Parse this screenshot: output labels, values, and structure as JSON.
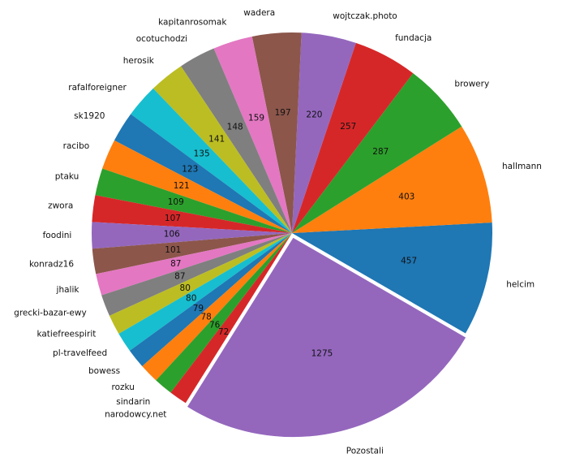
{
  "chart_data": {
    "type": "pie",
    "title": "",
    "start_angle_deg": -30,
    "direction": "counterclockwise",
    "exploded": [
      "Pozostali"
    ],
    "slices": [
      {
        "label": "helcim",
        "value": 457,
        "color": "#1f77b4"
      },
      {
        "label": "hallmann",
        "value": 403,
        "color": "#ff7f0e"
      },
      {
        "label": "browery",
        "value": 287,
        "color": "#2ca02c"
      },
      {
        "label": "fundacja",
        "value": 257,
        "color": "#d62728"
      },
      {
        "label": "wojtczak.photo",
        "value": 220,
        "color": "#9467bd"
      },
      {
        "label": "wadera",
        "value": 197,
        "color": "#8c564b"
      },
      {
        "label": "kapitanrosomak",
        "value": 159,
        "color": "#e377c2"
      },
      {
        "label": "ocotuchodzi",
        "value": 148,
        "color": "#7f7f7f"
      },
      {
        "label": "herosik",
        "value": 141,
        "color": "#bcbd22"
      },
      {
        "label": "rafalforeigner",
        "value": 135,
        "color": "#17becf"
      },
      {
        "label": "sk1920",
        "value": 123,
        "color": "#1f77b4"
      },
      {
        "label": "racibo",
        "value": 121,
        "color": "#ff7f0e"
      },
      {
        "label": "ptaku",
        "value": 109,
        "color": "#2ca02c"
      },
      {
        "label": "zwora",
        "value": 107,
        "color": "#d62728"
      },
      {
        "label": "foodini",
        "value": 106,
        "color": "#9467bd"
      },
      {
        "label": "konradz16",
        "value": 101,
        "color": "#8c564b"
      },
      {
        "label": "jhalik",
        "value": 87,
        "color": "#e377c2"
      },
      {
        "label": "grecki-bazar-ewy",
        "value": 87,
        "color": "#7f7f7f"
      },
      {
        "label": "katiefreespirit",
        "value": 80,
        "color": "#bcbd22"
      },
      {
        "label": "pl-travelfeed",
        "value": 80,
        "color": "#17becf"
      },
      {
        "label": "bowess",
        "value": 79,
        "color": "#1f77b4"
      },
      {
        "label": "rozku",
        "value": 78,
        "color": "#ff7f0e"
      },
      {
        "label": "sindarin",
        "value": 76,
        "color": "#2ca02c"
      },
      {
        "label": "narodowcy.net",
        "value": 72,
        "color": "#d62728"
      },
      {
        "label": "Pozostali",
        "value": 1275,
        "color": "#9467bd"
      }
    ]
  }
}
